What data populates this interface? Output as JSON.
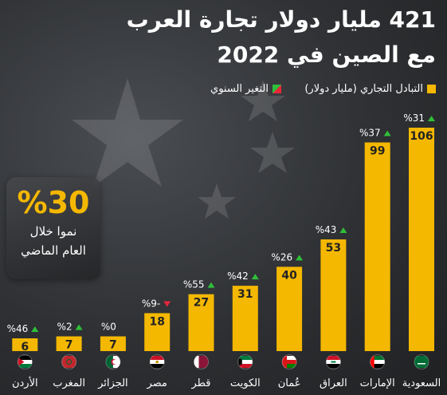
{
  "title": {
    "line1": "421 مليار دولار تجارة العرب",
    "line2": "مع الصين في 2022"
  },
  "legend": {
    "trade": "التبادل التجاري (مليار دولار)",
    "change": "التغير السنوي"
  },
  "callout": {
    "value": "%30",
    "line1": "نموا خلال",
    "line2": "العام الماضي"
  },
  "colors": {
    "bar": "#f5b800",
    "up": "#2fbf3a",
    "down": "#e8263a",
    "text": "#ffffff",
    "value_text": "#222222"
  },
  "chart_data": {
    "type": "bar",
    "categories": [
      "السعودية",
      "الإمارات",
      "العراق",
      "عُمان",
      "الكويت",
      "قطر",
      "مصر",
      "الجزائر",
      "المغرب",
      "الأردن"
    ],
    "values": [
      106,
      99,
      53,
      40,
      31,
      27,
      18,
      7,
      7,
      6
    ],
    "changes": [
      {
        "label": "%31",
        "direction": "up"
      },
      {
        "label": "%37",
        "direction": "up"
      },
      {
        "label": "%43",
        "direction": "up"
      },
      {
        "label": "%26",
        "direction": "up"
      },
      {
        "label": "%42",
        "direction": "up"
      },
      {
        "label": "%55",
        "direction": "up"
      },
      {
        "label": "%9-",
        "direction": "down"
      },
      {
        "label": "%0",
        "direction": "none"
      },
      {
        "label": "%2",
        "direction": "up"
      },
      {
        "label": "%46",
        "direction": "up"
      }
    ],
    "flags": [
      "saudi-flag-icon",
      "uae-flag-icon",
      "iraq-flag-icon",
      "oman-flag-icon",
      "kuwait-flag-icon",
      "qatar-flag-icon",
      "egypt-flag-icon",
      "algeria-flag-icon",
      "morocco-flag-icon",
      "jordan-flag-icon"
    ]
  }
}
